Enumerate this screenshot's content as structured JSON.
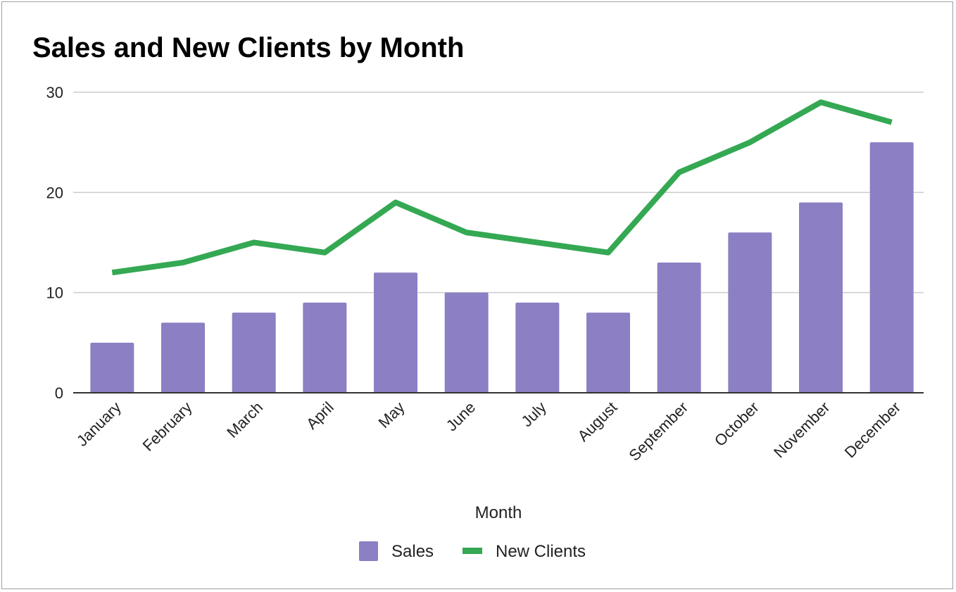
{
  "chart_data": {
    "type": "bar",
    "title": "Sales and New Clients by Month",
    "xlabel": "Month",
    "ylabel": "",
    "categories": [
      "January",
      "February",
      "March",
      "April",
      "May",
      "June",
      "July",
      "August",
      "September",
      "October",
      "November",
      "December"
    ],
    "series": [
      {
        "name": "Sales",
        "type": "bar",
        "color": "#8c7fc3",
        "values": [
          5,
          7,
          8,
          9,
          12,
          10,
          9,
          8,
          13,
          16,
          19,
          25
        ]
      },
      {
        "name": "New Clients",
        "type": "line",
        "color": "#34a853",
        "values": [
          12,
          13,
          15,
          14,
          19,
          16,
          15,
          14,
          22,
          25,
          29,
          27
        ]
      }
    ],
    "ylim": [
      0,
      30
    ],
    "yticks": [
      0,
      10,
      20,
      30
    ],
    "grid": true,
    "legend_position": "bottom"
  }
}
